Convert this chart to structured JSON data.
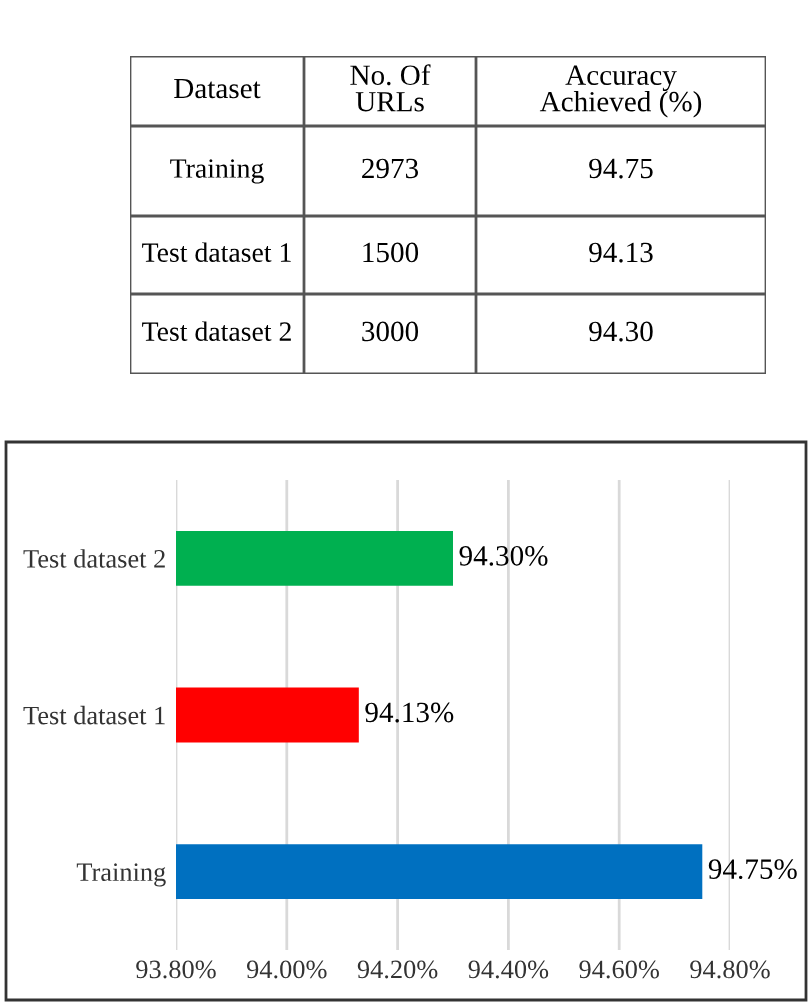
{
  "chart_data": [
    {
      "type": "other",
      "categories": [
        "Dataset",
        "No. Of\nURLs",
        "Accuracy\nAchieved (%)"
      ],
      "y_categories": [
        "Training",
        "Test dataset 1",
        "Test dataset 2"
      ],
      "cells": [
        [
          "2973",
          "94.75"
        ],
        [
          "1500",
          "94.13"
        ],
        [
          "3000",
          "94.30"
        ]
      ]
    },
    {
      "type": "bar",
      "orientation": "horizontal",
      "categories": [
        "Test dataset 2",
        "Test dataset 1",
        "Training"
      ],
      "values": [
        94.3,
        94.13,
        94.75
      ],
      "colors": [
        "#00b050",
        "#ff0000",
        "#0070c0"
      ],
      "value_labels": [
        "94.30%",
        "94.13%",
        "94.75%"
      ],
      "xlim": [
        93.8,
        94.8
      ],
      "xticks": [
        {
          "value": 93.8,
          "label": "93.80%"
        },
        {
          "value": 94.0,
          "label": "94.00%"
        },
        {
          "value": 94.2,
          "label": "94.20%"
        },
        {
          "value": 94.4,
          "label": "94.40%"
        },
        {
          "value": 94.6,
          "label": "94.60%"
        },
        {
          "value": 94.8,
          "label": "94.80%"
        }
      ],
      "grid": "x"
    }
  ]
}
